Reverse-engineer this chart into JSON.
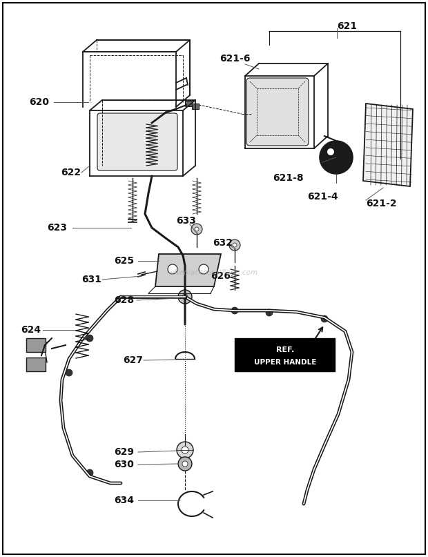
{
  "bg_color": "#ffffff",
  "border_color": "#000000",
  "text_color": "#000000",
  "watermark": "eReplacementParts.com",
  "line_color": "#1a1a1a",
  "lw_main": 1.3,
  "lw_thin": 0.8,
  "lw_handle": 3.5
}
